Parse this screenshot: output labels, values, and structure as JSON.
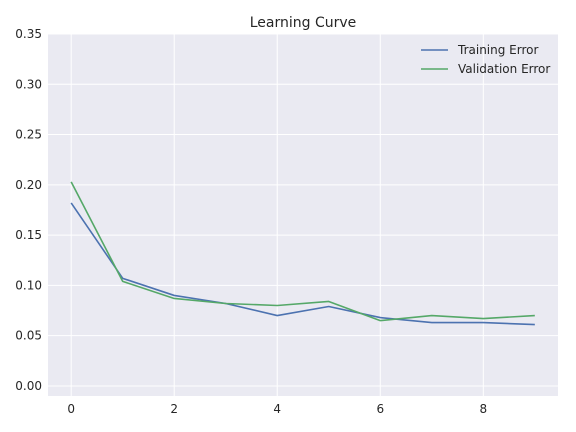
{
  "chart_data": {
    "type": "line",
    "title": "Learning Curve",
    "xlabel": "",
    "ylabel": "",
    "x": [
      0,
      1,
      2,
      3,
      4,
      5,
      6,
      7,
      8,
      9
    ],
    "xlim": [
      -0.45,
      9.45
    ],
    "ylim": [
      -0.01,
      0.35
    ],
    "xticks": [
      0,
      2,
      4,
      6,
      8
    ],
    "xtick_labels": [
      "0",
      "2",
      "4",
      "6",
      "8"
    ],
    "yticks": [
      0.0,
      0.05,
      0.1,
      0.15,
      0.2,
      0.25,
      0.3,
      0.35
    ],
    "ytick_labels": [
      "0.00",
      "0.05",
      "0.10",
      "0.15",
      "0.20",
      "0.25",
      "0.30",
      "0.35"
    ],
    "grid": true,
    "legend_position": "top-right",
    "series": [
      {
        "name": "Training Error",
        "color": "#4c72b0",
        "values": [
          0.182,
          0.107,
          0.09,
          0.082,
          0.07,
          0.079,
          0.068,
          0.063,
          0.063,
          0.061
        ]
      },
      {
        "name": "Validation Error",
        "color": "#55a868",
        "values": [
          0.203,
          0.104,
          0.087,
          0.082,
          0.08,
          0.084,
          0.065,
          0.07,
          0.067,
          0.07
        ]
      }
    ],
    "style": {
      "plot_background": "#eaeaf2",
      "grid_color": "#ffffff",
      "text_color": "#262626"
    }
  }
}
